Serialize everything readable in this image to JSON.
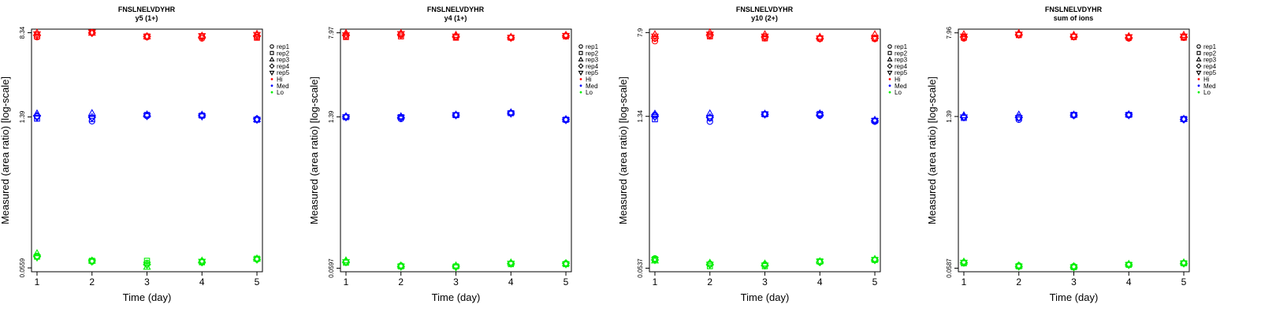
{
  "figure": {
    "panels": [
      {
        "title": "FNSLNELVDYHR",
        "subtitle": "y5 (1+)"
      },
      {
        "title": "FNSLNELVDYHR",
        "subtitle": "y4 (1+)"
      },
      {
        "title": "FNSLNELVDYHR",
        "subtitle": "y10 (2+)"
      },
      {
        "title": "FNSLNELVDYHR",
        "subtitle": "sum of ions"
      }
    ]
  },
  "colors": {
    "Hi": "#ff0000",
    "Med": "#0000ff",
    "Lo": "#00ee00",
    "axis": "#000000"
  },
  "legend": {
    "replicates": [
      "rep1",
      "rep2",
      "rep3",
      "rep4",
      "rep5"
    ],
    "replicate_symbols": [
      "circle",
      "square",
      "triangle-up",
      "diamond",
      "triangle-down"
    ],
    "levels": [
      "Hi",
      "Med",
      "Lo"
    ]
  },
  "chart_data": [
    {
      "type": "scatter",
      "title": "FNSLNELVDYHR",
      "subtitle": "y5 (1+)",
      "xlabel": "Time (day)",
      "ylabel": "Measured (area ratio) [log-scale]",
      "yscale": "log",
      "x_ticks": [
        1,
        2,
        3,
        4,
        5
      ],
      "y_ticks": [
        "0.0559",
        "1.39",
        "8.34"
      ],
      "y_tick_values": [
        0.0559,
        1.39,
        8.34
      ],
      "xlim": [
        0.9,
        5.1
      ],
      "ylim": [
        0.0515,
        9.0
      ],
      "grid": false,
      "legend_position": "right",
      "series": [
        {
          "name": "Hi",
          "color": "#ff0000",
          "x": [
            1,
            2,
            3,
            4,
            5
          ],
          "reps": [
            [
              7.6,
              8.4,
              7.6,
              7.4,
              7.6
            ],
            [
              7.7,
              8.4,
              7.7,
              7.7,
              7.5
            ],
            [
              8.3,
              8.3,
              7.7,
              7.8,
              8.1
            ],
            [
              7.9,
              8.3,
              7.7,
              7.6,
              7.8
            ],
            [
              8.1,
              8.4,
              7.7,
              7.8,
              8.0
            ]
          ]
        },
        {
          "name": "Med",
          "color": "#0000ff",
          "x": [
            1,
            2,
            3,
            4,
            5
          ],
          "reps": [
            [
              1.4,
              1.27,
              1.42,
              1.43,
              1.33
            ],
            [
              1.34,
              1.33,
              1.45,
              1.43,
              1.31
            ],
            [
              1.49,
              1.5,
              1.46,
              1.45,
              1.32
            ],
            [
              1.42,
              1.38,
              1.42,
              1.43,
              1.33
            ],
            [
              1.37,
              1.36,
              1.42,
              1.41,
              1.31
            ]
          ]
        },
        {
          "name": "Lo",
          "color": "#00ee00",
          "x": [
            1,
            2,
            3,
            4,
            5
          ],
          "reps": [
            [
              0.072,
              0.064,
              0.062,
              0.064,
              0.067
            ],
            [
              0.071,
              0.065,
              0.065,
              0.063,
              0.068
            ],
            [
              0.076,
              0.065,
              0.057,
              0.065,
              0.068
            ],
            [
              0.071,
              0.065,
              0.06,
              0.063,
              0.067
            ],
            [
              0.07,
              0.064,
              0.06,
              0.064,
              0.067
            ]
          ]
        }
      ]
    },
    {
      "type": "scatter",
      "title": "FNSLNELVDYHR",
      "subtitle": "y4 (1+)",
      "xlabel": "Time (day)",
      "ylabel": "Measured (area ratio) [log-scale]",
      "yscale": "log",
      "x_ticks": [
        1,
        2,
        3,
        4,
        5
      ],
      "y_ticks": [
        "0.0597",
        "1.39",
        "7.97"
      ],
      "y_tick_values": [
        0.0597,
        1.39,
        7.97
      ],
      "xlim": [
        0.9,
        5.1
      ],
      "ylim": [
        0.0555,
        8.6
      ],
      "grid": false,
      "legend_position": "right",
      "series": [
        {
          "name": "Hi",
          "color": "#ff0000",
          "x": [
            1,
            2,
            3,
            4,
            5
          ],
          "reps": [
            [
              7.4,
              7.6,
              7.3,
              7.2,
              7.5
            ],
            [
              7.3,
              7.4,
              7.2,
              7.2,
              7.4
            ],
            [
              7.9,
              7.9,
              7.6,
              7.3,
              7.6
            ],
            [
              7.6,
              7.7,
              7.4,
              7.2,
              7.5
            ],
            [
              7.6,
              7.8,
              7.4,
              7.2,
              7.5
            ]
          ]
        },
        {
          "name": "Med",
          "color": "#0000ff",
          "x": [
            1,
            2,
            3,
            4,
            5
          ],
          "reps": [
            [
              1.38,
              1.33,
              1.44,
              1.5,
              1.3
            ],
            [
              1.38,
              1.38,
              1.44,
              1.5,
              1.31
            ],
            [
              1.4,
              1.4,
              1.45,
              1.52,
              1.32
            ],
            [
              1.39,
              1.37,
              1.44,
              1.5,
              1.31
            ],
            [
              1.38,
              1.37,
              1.44,
              1.49,
              1.3
            ]
          ]
        },
        {
          "name": "Lo",
          "color": "#00ee00",
          "x": [
            1,
            2,
            3,
            4,
            5
          ],
          "reps": [
            [
              0.068,
              0.063,
              0.062,
              0.066,
              0.066
            ],
            [
              0.067,
              0.062,
              0.062,
              0.065,
              0.065
            ],
            [
              0.07,
              0.063,
              0.063,
              0.067,
              0.066
            ],
            [
              0.068,
              0.062,
              0.062,
              0.066,
              0.066
            ],
            [
              0.068,
              0.062,
              0.061,
              0.066,
              0.065
            ]
          ]
        }
      ]
    },
    {
      "type": "scatter",
      "title": "FNSLNELVDYHR",
      "subtitle": "y10 (2+)",
      "xlabel": "Time (day)",
      "ylabel": "Measured (area ratio) [log-scale]",
      "yscale": "log",
      "x_ticks": [
        1,
        2,
        3,
        4,
        5
      ],
      "y_ticks": [
        "0.0537",
        "1.34",
        "7.9"
      ],
      "y_tick_values": [
        0.0537,
        1.34,
        7.9
      ],
      "xlim": [
        0.9,
        5.1
      ],
      "ylim": [
        0.0498,
        8.5
      ],
      "grid": false,
      "legend_position": "right",
      "series": [
        {
          "name": "Hi",
          "color": "#ff0000",
          "x": [
            1,
            2,
            3,
            4,
            5
          ],
          "reps": [
            [
              6.6,
              7.3,
              7.0,
              6.9,
              6.9
            ],
            [
              7.0,
              7.3,
              7.0,
              7.0,
              7.0
            ],
            [
              7.6,
              7.9,
              7.6,
              7.2,
              7.6
            ],
            [
              7.0,
              7.5,
              7.2,
              7.0,
              7.0
            ],
            [
              7.3,
              7.6,
              7.3,
              7.0,
              7.1
            ]
          ]
        },
        {
          "name": "Med",
          "color": "#0000ff",
          "x": [
            1,
            2,
            3,
            4,
            5
          ],
          "reps": [
            [
              1.38,
              1.2,
              1.4,
              1.36,
              1.2
            ],
            [
              1.26,
              1.29,
              1.4,
              1.41,
              1.22
            ],
            [
              1.41,
              1.42,
              1.41,
              1.42,
              1.24
            ],
            [
              1.34,
              1.31,
              1.4,
              1.38,
              1.22
            ],
            [
              1.32,
              1.3,
              1.4,
              1.38,
              1.22
            ]
          ]
        },
        {
          "name": "Lo",
          "color": "#00ee00",
          "x": [
            1,
            2,
            3,
            4,
            5
          ],
          "reps": [
            [
              0.066,
              0.059,
              0.058,
              0.061,
              0.064
            ],
            [
              0.065,
              0.056,
              0.056,
              0.062,
              0.064
            ],
            [
              0.063,
              0.06,
              0.059,
              0.062,
              0.065
            ],
            [
              0.064,
              0.058,
              0.057,
              0.061,
              0.064
            ],
            [
              0.064,
              0.058,
              0.057,
              0.062,
              0.064
            ]
          ]
        }
      ]
    },
    {
      "type": "scatter",
      "title": "FNSLNELVDYHR",
      "subtitle": "sum of ions",
      "xlabel": "Time (day)",
      "ylabel": "Measured (area ratio) [log-scale]",
      "yscale": "log",
      "x_ticks": [
        1,
        2,
        3,
        4,
        5
      ],
      "y_ticks": [
        "0.0587",
        "1.39",
        "7.96"
      ],
      "y_tick_values": [
        0.0587,
        1.39,
        7.96
      ],
      "xlim": [
        0.9,
        5.1
      ],
      "ylim": [
        0.0545,
        8.6
      ],
      "grid": false,
      "legend_position": "right",
      "series": [
        {
          "name": "Hi",
          "color": "#ff0000",
          "x": [
            1,
            2,
            3,
            4,
            5
          ],
          "reps": [
            [
              7.1,
              7.6,
              7.3,
              7.1,
              7.2
            ],
            [
              7.2,
              7.6,
              7.3,
              7.2,
              7.2
            ],
            [
              7.7,
              7.9,
              7.6,
              7.4,
              7.6
            ],
            [
              7.3,
              7.7,
              7.4,
              7.2,
              7.3
            ],
            [
              7.4,
              7.7,
              7.4,
              7.3,
              7.4
            ]
          ]
        },
        {
          "name": "Med",
          "color": "#0000ff",
          "x": [
            1,
            2,
            3,
            4,
            5
          ],
          "reps": [
            [
              1.37,
              1.3,
              1.42,
              1.43,
              1.31
            ],
            [
              1.35,
              1.35,
              1.44,
              1.44,
              1.32
            ],
            [
              1.42,
              1.44,
              1.44,
              1.45,
              1.32
            ],
            [
              1.38,
              1.36,
              1.43,
              1.44,
              1.31
            ],
            [
              1.37,
              1.35,
              1.43,
              1.43,
              1.31
            ]
          ]
        },
        {
          "name": "Lo",
          "color": "#00ee00",
          "x": [
            1,
            2,
            3,
            4,
            5
          ],
          "reps": [
            [
              0.066,
              0.062,
              0.061,
              0.063,
              0.065
            ],
            [
              0.065,
              0.061,
              0.06,
              0.063,
              0.065
            ],
            [
              0.067,
              0.062,
              0.061,
              0.064,
              0.066
            ],
            [
              0.066,
              0.061,
              0.06,
              0.063,
              0.065
            ],
            [
              0.066,
              0.061,
              0.06,
              0.063,
              0.065
            ]
          ]
        }
      ]
    }
  ]
}
